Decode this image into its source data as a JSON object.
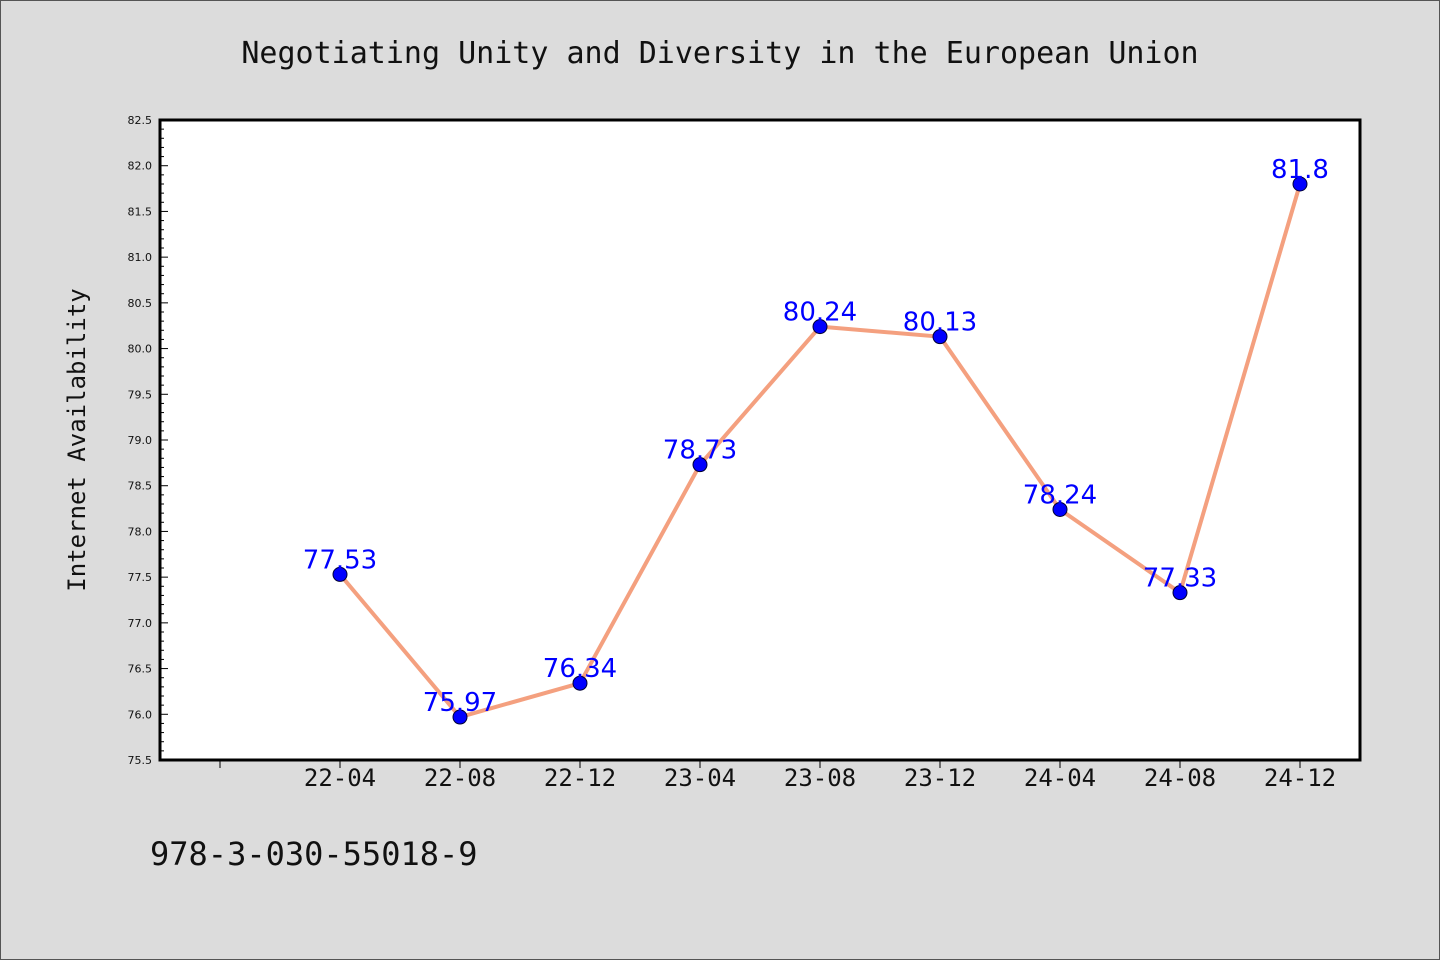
{
  "chart_data": {
    "type": "line",
    "title": "Negotiating Unity and Diversity in the European Union",
    "xlabel": "",
    "ylabel": "Internet Availability",
    "categories": [
      "22-04",
      "22-08",
      "22-12",
      "23-04",
      "23-08",
      "23-12",
      "24-04",
      "24-08",
      "24-12"
    ],
    "values": [
      77.53,
      75.97,
      76.34,
      78.73,
      80.24,
      80.13,
      78.24,
      77.33,
      81.8
    ],
    "data_labels": [
      "77.53",
      "75.97",
      "76.34",
      "78.73",
      "80.24",
      "80.13",
      "78.24",
      "77.33",
      "81.8"
    ],
    "ylim": [
      75.5,
      82.5
    ],
    "yticks": [
      "75.5",
      "76.0",
      "76.5",
      "77.0",
      "77.5",
      "78.0",
      "78.5",
      "79.0",
      "79.5",
      "80.0",
      "80.5",
      "81.0",
      "81.5",
      "82.0",
      "82.5"
    ],
    "grid": false,
    "line_color": "#f4a07f",
    "marker_color": "#0000ff",
    "label_color": "#0000ff",
    "background_color": "#dcdcdc",
    "plot_background_color": "#ffffff"
  },
  "footer": {
    "isbn": "978-3-030-55018-9"
  }
}
